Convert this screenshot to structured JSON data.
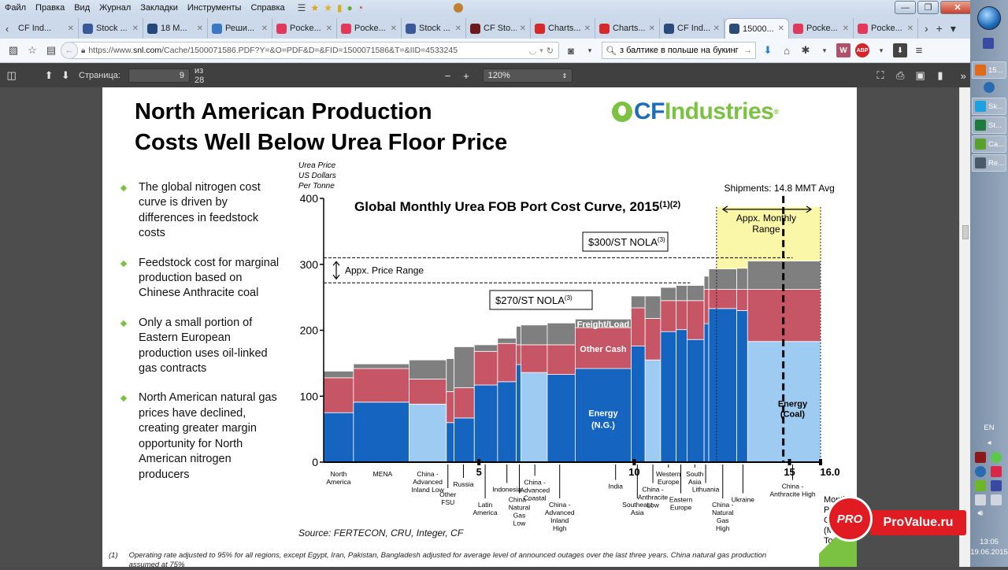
{
  "menubar": {
    "items": [
      "Файл",
      "Правка",
      "Вид",
      "Журнал",
      "Закладки",
      "Инструменты",
      "Справка"
    ]
  },
  "window_controls": {
    "minimize": "—",
    "maximize": "❐",
    "close": "✕"
  },
  "tabs": [
    {
      "label": "CF Ind...",
      "icon": "none",
      "color": "#cbd9ea"
    },
    {
      "label": "Stock ...",
      "icon": "facebook-icon",
      "color": "#3b5998"
    },
    {
      "label": "18 M...",
      "icon": "bi-icon",
      "color": "#24487a"
    },
    {
      "label": "Реши...",
      "icon": "24-icon",
      "color": "#3a78c2"
    },
    {
      "label": "Pocke...",
      "icon": "pocket-icon",
      "color": "#e0395a"
    },
    {
      "label": "Pocke...",
      "icon": "pocket-icon",
      "color": "#e0395a"
    },
    {
      "label": "Stock ...",
      "icon": "facebook-icon",
      "color": "#3b5998"
    },
    {
      "label": "CF Sto...",
      "icon": "seekingalpha-icon",
      "color": "#6d1a1a"
    },
    {
      "label": "Charts...",
      "icon": "chart-app-icon",
      "color": "#d62a2a"
    },
    {
      "label": "Charts...",
      "icon": "chart-app-icon",
      "color": "#d62a2a"
    },
    {
      "label": "CF Ind...",
      "icon": "snl-icon",
      "color": "#2b4b7a"
    },
    {
      "label": "15000...",
      "icon": "snl-icon",
      "color": "#2b4b7a",
      "active": true
    },
    {
      "label": "Pocke...",
      "icon": "pocket-icon",
      "color": "#e0395a"
    },
    {
      "label": "Pocke...",
      "icon": "pocket-icon",
      "color": "#e0395a"
    }
  ],
  "navbar": {
    "url_prefix": "https://www.",
    "url_domain": "snl.com",
    "url_rest": "/Cache/1500071586.PDF?Y=&O=PDF&D=&FID=1500071586&T=&IID=4533245",
    "search_value": "з балтике в польше на букинг ком"
  },
  "pdf_toolbar": {
    "page_label": "Страница:",
    "page_value": "9",
    "page_total": "из 28",
    "zoom_value": "120%"
  },
  "slide": {
    "title_line1": "North American Production",
    "title_line2": "Costs Well Below Urea Floor Price",
    "logo_cf": "CF",
    "logo_industries": "Industries",
    "logo_reg": "®",
    "bullets": [
      "The global nitrogen cost curve is driven by differences in feedstock costs",
      "Feedstock cost for marginal production based on Chinese Anthracite coal",
      "Only a small portion of Eastern European production uses oil-linked gas contracts",
      "North American natural gas prices have declined, creating greater margin opportunity for North American nitrogen producers"
    ],
    "source": "Source: FERTECON, CRU, Integer, CF",
    "footnote_num": "(1)",
    "footnote_text": "Operating rate adjusted to 95% for all regions, except Egypt, Iran, Pakistan, Bangladesh adjusted for average level of announced outages over the last three years. China natural gas production assumed at 75%"
  },
  "chart_data": {
    "type": "bar",
    "subtype": "stacked variable-width cost curve",
    "title": "Global Monthly Urea FOB Port Cost Curve, 2015",
    "title_superscript": "(1)(2)",
    "ylabel": "Urea Price US Dollars Per Tonne",
    "ylabel_lines": [
      "Urea Price",
      "US Dollars",
      "Per Tonne"
    ],
    "xlabel": "Monthly Production Capacity (Million Tonnes)",
    "xlabel_lines": [
      "Monthly",
      "Production",
      "Capacity",
      "(Million",
      "Tonnes)"
    ],
    "ylim": [
      0,
      400
    ],
    "xlim": [
      0,
      16
    ],
    "yticks": [
      0,
      100,
      200,
      300,
      400
    ],
    "xticks": [
      {
        "value": 5,
        "label": "5"
      },
      {
        "value": 10,
        "label": "10"
      },
      {
        "value": 15,
        "label": "15"
      },
      {
        "value": 16,
        "label": "16.0"
      }
    ],
    "grid": false,
    "colors": {
      "energy_ng": "#1565c0",
      "energy_coal": "#9ecbf2",
      "other_cash": "#c65566",
      "freight_load": "#7f7f7f",
      "monthly_range": "#fbf7a8"
    },
    "series_names": [
      "Energy",
      "Other Cash",
      "Freight/Load"
    ],
    "segment_labels": {
      "freight": "Freight/Load",
      "other": "Other Cash",
      "energy_ng": [
        "Energy",
        "(N.G.)"
      ],
      "energy_coal": [
        "Energy",
        "(Coal)"
      ]
    },
    "bars": [
      {
        "label": "North America",
        "x0": 0.0,
        "x1": 0.96,
        "energy": 75,
        "other_cash": 53,
        "freight": 10,
        "fuel": "ng"
      },
      {
        "label": "MENA",
        "x0": 0.96,
        "x1": 2.75,
        "energy": 91,
        "other_cash": 51,
        "freight": 7,
        "fuel": "ng"
      },
      {
        "label": "China - Advanced Inland Low",
        "x0": 2.75,
        "x1": 3.95,
        "energy": 88,
        "other_cash": 38,
        "freight": 29,
        "fuel": "coal"
      },
      {
        "label": "Other FSU",
        "x0": 3.95,
        "x1": 4.2,
        "energy": 60,
        "other_cash": 47,
        "freight": 50,
        "fuel": "ng"
      },
      {
        "label": "Russia",
        "x0": 4.2,
        "x1": 4.85,
        "energy": 67,
        "other_cash": 46,
        "freight": 62,
        "fuel": "ng"
      },
      {
        "label": "Latin America",
        "x0": 4.85,
        "x1": 5.6,
        "energy": 117,
        "other_cash": 51,
        "freight": 10,
        "fuel": "ng"
      },
      {
        "label": "Indonesia",
        "x0": 5.6,
        "x1": 6.2,
        "energy": 122,
        "other_cash": 58,
        "freight": 8,
        "fuel": "ng"
      },
      {
        "label": "China - Natural Gas Low",
        "x0": 6.2,
        "x1": 6.35,
        "energy": 148,
        "other_cash": 30,
        "freight": 28,
        "fuel": "ng"
      },
      {
        "label": "China - Advanced Coastal",
        "x0": 6.35,
        "x1": 7.2,
        "energy": 136,
        "other_cash": 42,
        "freight": 30,
        "fuel": "coal"
      },
      {
        "label": "China - Advanced Inland High",
        "x0": 7.2,
        "x1": 8.1,
        "energy": 133,
        "other_cash": 45,
        "freight": 33,
        "fuel": "ng"
      },
      {
        "label": "India",
        "x0": 8.1,
        "x1": 9.9,
        "energy": 142,
        "other_cash": 62,
        "freight": 13,
        "fuel": "ng"
      },
      {
        "label": "Southeast Asia",
        "x0": 9.9,
        "x1": 10.35,
        "energy": 176,
        "other_cash": 58,
        "freight": 18,
        "fuel": "ng"
      },
      {
        "label": "China - Anthracite Low",
        "x0": 10.35,
        "x1": 10.85,
        "energy": 155,
        "other_cash": 63,
        "freight": 34,
        "fuel": "coal"
      },
      {
        "label": "Western Europe",
        "x0": 10.85,
        "x1": 11.35,
        "energy": 198,
        "other_cash": 47,
        "freight": 20,
        "fuel": "ng"
      },
      {
        "label": "Eastern Europe",
        "x0": 11.35,
        "x1": 11.7,
        "energy": 201,
        "other_cash": 44,
        "freight": 23,
        "fuel": "ng"
      },
      {
        "label": "South Asia",
        "x0": 11.7,
        "x1": 12.25,
        "energy": 186,
        "other_cash": 59,
        "freight": 23,
        "fuel": "ng"
      },
      {
        "label": "Lithuania",
        "x0": 12.25,
        "x1": 12.4,
        "energy": 210,
        "other_cash": 52,
        "freight": 20,
        "fuel": "ng"
      },
      {
        "label": "China - Natural Gas High",
        "x0": 12.4,
        "x1": 13.3,
        "energy": 233,
        "other_cash": 29,
        "freight": 31,
        "fuel": "ng"
      },
      {
        "label": "Ukraine",
        "x0": 13.3,
        "x1": 13.65,
        "energy": 230,
        "other_cash": 32,
        "freight": 32,
        "fuel": "ng"
      },
      {
        "label": "China - Anthracite High",
        "x0": 13.65,
        "x1": 16.0,
        "energy": 183,
        "other_cash": 79,
        "freight": 43,
        "fuel": "coal"
      }
    ],
    "category_labels": [
      {
        "lines": [
          "North",
          "America"
        ],
        "x": 0.48,
        "level": 0,
        "leader": false
      },
      {
        "lines": [
          "MENA"
        ],
        "x": 1.9,
        "level": 0,
        "leader": false
      },
      {
        "lines": [
          "China -",
          "Advanced",
          "Inland Low"
        ],
        "x": 3.35,
        "level": 0,
        "leader": false
      },
      {
        "lines": [
          "Other",
          "FSU"
        ],
        "x": 4.0,
        "level": 2,
        "leader": true
      },
      {
        "lines": [
          "Russia"
        ],
        "x": 4.5,
        "level": 1,
        "leader": true
      },
      {
        "lines": [
          "Latin",
          "America"
        ],
        "x": 5.2,
        "level": 3,
        "leader": true
      },
      {
        "lines": [
          "Indonesia"
        ],
        "x": 5.9,
        "level": 1.5,
        "leader": true
      },
      {
        "lines": [
          "China -",
          "Natural",
          "Gas",
          "Low"
        ],
        "x": 6.3,
        "level": 2.5,
        "leader": true
      },
      {
        "lines": [
          "China -",
          "Advanced",
          "Coastal"
        ],
        "x": 6.8,
        "level": 0.8,
        "leader": true
      },
      {
        "lines": [
          "China -",
          "Advanced",
          "Inland",
          "High"
        ],
        "x": 7.6,
        "level": 3,
        "leader": true
      },
      {
        "lines": [
          "India"
        ],
        "x": 9.4,
        "level": 1.2,
        "leader": true
      },
      {
        "lines": [
          "Southeast",
          "Asia"
        ],
        "x": 10.1,
        "level": 3,
        "leader": true
      },
      {
        "lines": [
          "China -",
          "Anthracite",
          "Low"
        ],
        "x": 10.6,
        "level": 1.5,
        "leader": true
      },
      {
        "lines": [
          "Western",
          "Europe"
        ],
        "x": 11.1,
        "level": 0,
        "leader": true
      },
      {
        "lines": [
          "Eastern",
          "Europe"
        ],
        "x": 11.5,
        "level": 2.5,
        "leader": true
      },
      {
        "lines": [
          "South",
          "Asia"
        ],
        "x": 11.95,
        "level": 0,
        "leader": true
      },
      {
        "lines": [
          "Lithuania"
        ],
        "x": 12.3,
        "level": 1.5,
        "leader": true
      },
      {
        "lines": [
          "China -",
          "Natural",
          "Gas",
          "High"
        ],
        "x": 12.85,
        "level": 3,
        "leader": true
      },
      {
        "lines": [
          "Ukraine"
        ],
        "x": 13.5,
        "level": 2.5,
        "leader": true
      },
      {
        "lines": [
          "China -",
          "Anthracite High"
        ],
        "x": 15.1,
        "level": 1.2,
        "leader": true
      }
    ],
    "annotations": {
      "price_range_label": "Appx. Price Range",
      "price_range_low": 272,
      "price_range_high": 310,
      "nola_300": "$300/ST NOLA",
      "nola_270": "$270/ST NOLA",
      "nola_sup": "(3)",
      "shipments_label": "Shipments: 14.8 MMT Avg",
      "shipments_avg": 14.8,
      "monthly_range_label": [
        "Appx. Monthly",
        "Range"
      ],
      "monthly_range_x": [
        12.65,
        16.0
      ],
      "monthly_range_top": 387
    }
  },
  "watermark": {
    "text": "ProValue.ru",
    "badge": "PRO",
    "badge_small": "Value"
  },
  "taskbar": {
    "items": [
      {
        "label": "15...",
        "icon": "firefox-icon",
        "color": "#e06a1a"
      },
      {
        "label": "Sk...",
        "icon": "skype-icon",
        "color": "#1fa0e0"
      },
      {
        "label": "St...",
        "icon": "excel-icon",
        "color": "#1e7a3c"
      },
      {
        "label": "Ca...",
        "icon": "camtasia-icon",
        "color": "#5aa02c"
      },
      {
        "label": "Re...",
        "icon": "recorder-icon",
        "color": "#4a5a6a"
      }
    ],
    "lang": "EN",
    "time": "13:05",
    "date": "19.06.2015"
  }
}
